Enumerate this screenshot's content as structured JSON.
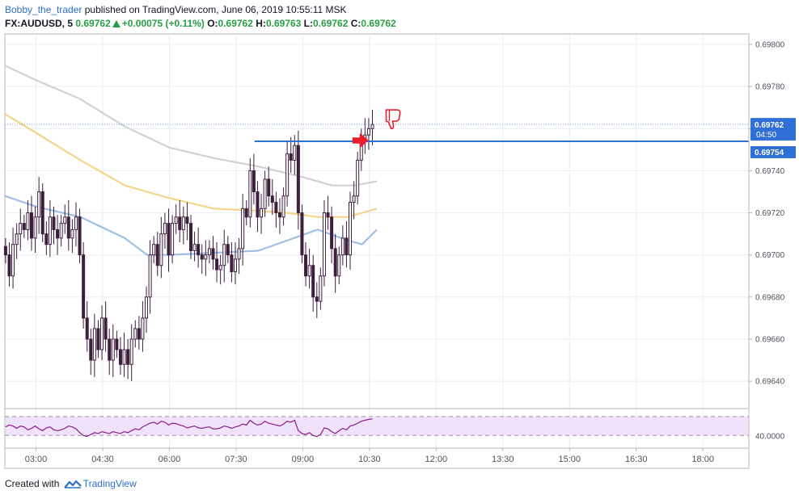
{
  "header": {
    "author": "Bobby_the_trader",
    "published": "published on TradingView.com, June 06, 2019 10:55:11 MSK",
    "symbol": "FX:AUDUSD, 5",
    "last": "0.69762",
    "change": "+0.00075 (+0.11%)",
    "o_label": "O:",
    "o_value": "0.69762",
    "h_label": "H:",
    "h_value": "0.69763",
    "l_label": "L:",
    "l_value": "0.69762",
    "c_label": "C:",
    "c_value": "0.69762"
  },
  "footer": {
    "created_with": "Created with",
    "brand": "TradingView"
  },
  "colors": {
    "accent": "#2a6ec8",
    "candle": "#3d1f3d",
    "ma_gray": "#d2d2d2",
    "ma_yellow": "#f5d58c",
    "ma_blue": "#9ebfe8",
    "horizontal_line": "#2f6fd6",
    "price_label_bg": "#2f6fd6",
    "rsi_line": "#8b1a8b",
    "rsi_band": "#f1e2fb",
    "annotation_red": "#e8202a",
    "grid": "#e9ecf0"
  },
  "chart_data": {
    "type": "candlestick",
    "title": "FX:AUDUSD, 5",
    "ylim": [
      0.69627,
      0.69805
    ],
    "y_ticks": [
      "0.69800",
      "0.69780",
      "0.69760",
      "0.69740",
      "0.69720",
      "0.69700",
      "0.69680",
      "0.69660",
      "0.69640"
    ],
    "y_tick_values": [
      0.698,
      0.6978,
      0.6976,
      0.6974,
      0.6972,
      0.697,
      0.6968,
      0.6966,
      0.6964
    ],
    "x_ticks": [
      "03:00",
      "04:30",
      "06:00",
      "07:30",
      "09:00",
      "10:30",
      "12:00",
      "13:30",
      "15:00",
      "16:30",
      "18:00"
    ],
    "x_tick_minutes": [
      180,
      270,
      360,
      450,
      540,
      630,
      720,
      810,
      900,
      990,
      1080
    ],
    "x_range_minutes": [
      138,
      1142
    ],
    "last_price_label": "0.69762",
    "countdown_label": "04:50",
    "horizontal_level": 0.69754,
    "horizontal_level_label": "0.69754",
    "horizontal_level_start_minute": 475,
    "grid": true,
    "candles_close": [
      0.697,
      0.6969,
      0.69705,
      0.6971,
      0.69715,
      0.69712,
      0.6972,
      0.69708,
      0.69718,
      0.6973,
      0.6971,
      0.69705,
      0.69718,
      0.69712,
      0.69708,
      0.69715,
      0.69718,
      0.69708,
      0.69712,
      0.69718,
      0.697,
      0.6967,
      0.6966,
      0.6965,
      0.69665,
      0.69655,
      0.6967,
      0.6966,
      0.6965,
      0.6966,
      0.69655,
      0.69648,
      0.69655,
      0.69648,
      0.6966,
      0.69665,
      0.6966,
      0.6967,
      0.6968,
      0.697,
      0.69705,
      0.69695,
      0.6971,
      0.69715,
      0.697,
      0.69715,
      0.69718,
      0.69712,
      0.69718,
      0.69715,
      0.69702,
      0.69705,
      0.697,
      0.69698,
      0.697,
      0.69703,
      0.69698,
      0.69693,
      0.69695,
      0.69705,
      0.697,
      0.69692,
      0.69698,
      0.69703,
      0.69722,
      0.69718,
      0.6974,
      0.6973,
      0.69718,
      0.69722,
      0.69736,
      0.69728,
      0.69725,
      0.6972,
      0.69718,
      0.69728,
      0.69748,
      0.69745,
      0.69752,
      0.6972,
      0.697,
      0.6969,
      0.69695,
      0.6968,
      0.69678,
      0.6969,
      0.6972,
      0.69718,
      0.69703,
      0.6969,
      0.697,
      0.69708,
      0.697,
      0.69725,
      0.69728,
      0.69745,
      0.69754,
      0.69757,
      0.6976,
      0.69762
    ],
    "moving_averages": [
      {
        "color": "gray",
        "points": [
          [
            138,
            0.6979
          ],
          [
            180,
            0.69783
          ],
          [
            240,
            0.69774
          ],
          [
            300,
            0.69761
          ],
          [
            360,
            0.69751
          ],
          [
            420,
            0.69746
          ],
          [
            480,
            0.69742
          ],
          [
            540,
            0.69737
          ],
          [
            580,
            0.69733
          ],
          [
            610,
            0.69733
          ],
          [
            640,
            0.69735
          ]
        ]
      },
      {
        "color": "yellow",
        "points": [
          [
            138,
            0.69767
          ],
          [
            180,
            0.69758
          ],
          [
            240,
            0.69745
          ],
          [
            300,
            0.69733
          ],
          [
            360,
            0.69727
          ],
          [
            420,
            0.69722
          ],
          [
            480,
            0.69721
          ],
          [
            520,
            0.6972
          ],
          [
            560,
            0.69718
          ],
          [
            600,
            0.69718
          ],
          [
            640,
            0.69722
          ]
        ]
      },
      {
        "color": "blue",
        "points": [
          [
            138,
            0.69728
          ],
          [
            180,
            0.69723
          ],
          [
            240,
            0.69718
          ],
          [
            300,
            0.69708
          ],
          [
            330,
            0.697
          ],
          [
            360,
            0.697
          ],
          [
            420,
            0.69701
          ],
          [
            480,
            0.69702
          ],
          [
            520,
            0.69707
          ],
          [
            560,
            0.69712
          ],
          [
            600,
            0.69707
          ],
          [
            620,
            0.69705
          ],
          [
            640,
            0.69712
          ]
        ]
      }
    ],
    "rsi": {
      "label": "40.0000",
      "band": [
        40,
        80
      ],
      "values": [
        58,
        62,
        60,
        55,
        60,
        58,
        52,
        55,
        60,
        54,
        50,
        56,
        58,
        52,
        50,
        52,
        55,
        60,
        58,
        54,
        46,
        40,
        38,
        42,
        46,
        44,
        48,
        46,
        44,
        48,
        46,
        44,
        48,
        46,
        50,
        54,
        52,
        58,
        62,
        66,
        68,
        64,
        70,
        68,
        62,
        66,
        65,
        62,
        60,
        56,
        58,
        60,
        56,
        55,
        57,
        58,
        54,
        54,
        56,
        60,
        58,
        55,
        58,
        60,
        64,
        62,
        72,
        66,
        62,
        64,
        70,
        66,
        64,
        62,
        60,
        64,
        70,
        68,
        72,
        50,
        44,
        42,
        46,
        40,
        38,
        42,
        56,
        54,
        48,
        44,
        50,
        55,
        52,
        60,
        62,
        66,
        70,
        72,
        74,
        75
      ]
    }
  }
}
